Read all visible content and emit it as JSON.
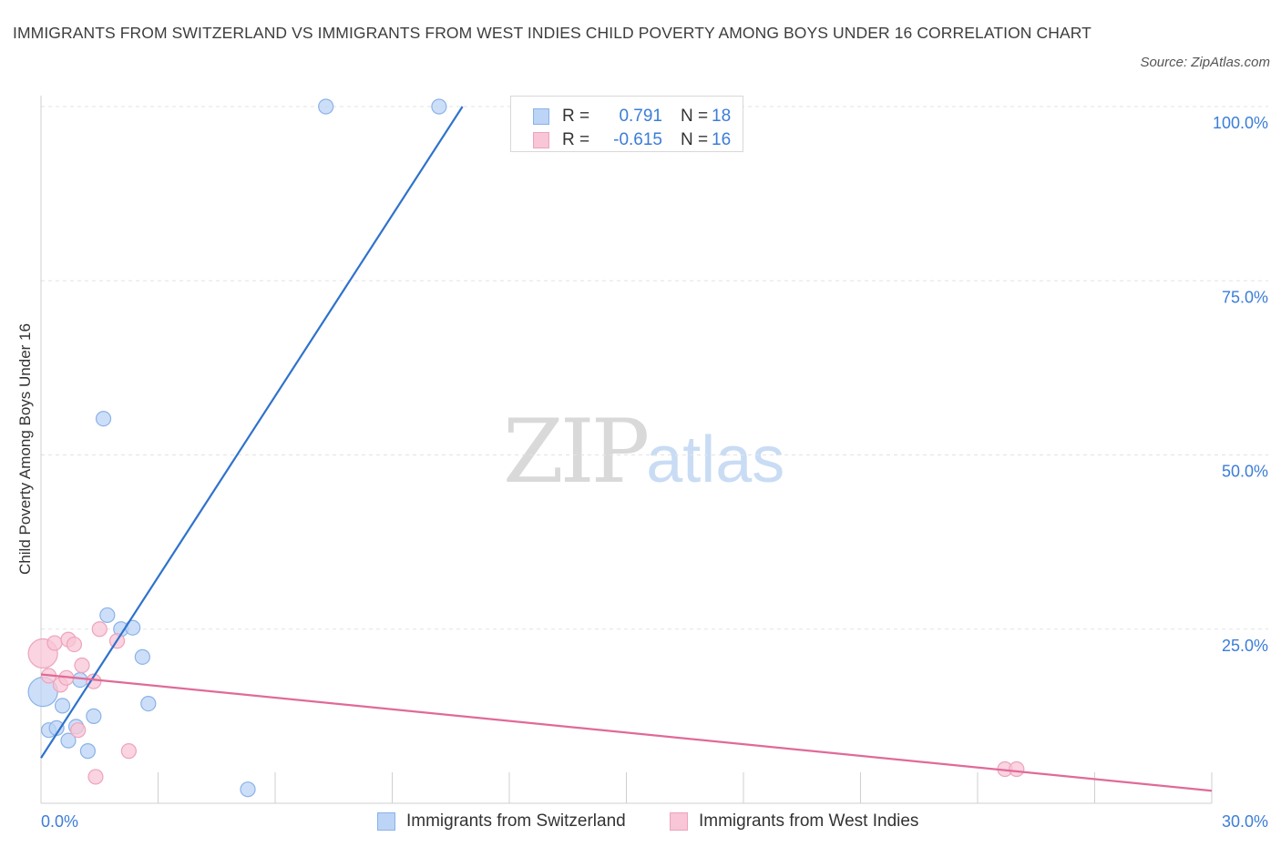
{
  "header": {
    "title": "IMMIGRANTS FROM SWITZERLAND VS IMMIGRANTS FROM WEST INDIES CHILD POVERTY AMONG BOYS UNDER 16 CORRELATION CHART",
    "source": "Source: ZipAtlas.com"
  },
  "watermark": {
    "zip": "ZIP",
    "atlas": "atlas"
  },
  "legend": {
    "rows": [
      {
        "r_label": "R =",
        "r_value": "0.791",
        "n_label": "N =",
        "n_value": "18"
      },
      {
        "r_label": "R =",
        "r_value": "-0.615",
        "n_label": "N =",
        "n_value": "16"
      }
    ]
  },
  "bottom_legend": {
    "series_a": "Immigrants from Switzerland",
    "series_b": "Immigrants from West Indies"
  },
  "colors": {
    "blue_fill": "#bcd4f5",
    "blue_stroke": "#8ab2e8",
    "blue_line": "#2f72cc",
    "pink_fill": "#f8c6d6",
    "pink_stroke": "#eea3bc",
    "pink_line": "#e06a97",
    "grid": "#e3e3e3",
    "tick_text": "#3b7dd8"
  },
  "chart_data": {
    "type": "scatter",
    "title": "IMMIGRANTS FROM SWITZERLAND VS IMMIGRANTS FROM WEST INDIES CHILD POVERTY AMONG BOYS UNDER 16 CORRELATION CHART",
    "xlabel": "",
    "ylabel": "Child Poverty Among Boys Under 16",
    "xlim": [
      0,
      30
    ],
    "ylim": [
      0,
      100
    ],
    "x_tick_labels": [
      "0.0%",
      "30.0%"
    ],
    "y_ticks": [
      25,
      50,
      75,
      100
    ],
    "y_tick_labels": [
      "25.0%",
      "50.0%",
      "75.0%",
      "100.0%"
    ],
    "series": [
      {
        "name": "Immigrants from Switzerland",
        "color": "blue",
        "points": [
          {
            "x": 0.05,
            "y": 16.0,
            "big": true
          },
          {
            "x": 0.2,
            "y": 10.5
          },
          {
            "x": 0.4,
            "y": 10.8
          },
          {
            "x": 0.55,
            "y": 14.0
          },
          {
            "x": 0.7,
            "y": 9.0
          },
          {
            "x": 0.9,
            "y": 11.0
          },
          {
            "x": 1.0,
            "y": 17.7
          },
          {
            "x": 1.2,
            "y": 7.5
          },
          {
            "x": 1.35,
            "y": 12.5
          },
          {
            "x": 1.6,
            "y": 55.2
          },
          {
            "x": 1.7,
            "y": 27.0
          },
          {
            "x": 2.05,
            "y": 25.0
          },
          {
            "x": 2.35,
            "y": 25.2
          },
          {
            "x": 2.6,
            "y": 21.0
          },
          {
            "x": 2.75,
            "y": 14.3
          },
          {
            "x": 5.3,
            "y": 2.0
          },
          {
            "x": 7.3,
            "y": 100.0
          },
          {
            "x": 10.2,
            "y": 100.0
          }
        ],
        "trend": {
          "x0": 0.0,
          "y0": 6.5,
          "x1": 10.8,
          "y1": 100.0
        }
      },
      {
        "name": "Immigrants from West Indies",
        "color": "pink",
        "points": [
          {
            "x": 0.05,
            "y": 21.5,
            "big": true
          },
          {
            "x": 0.2,
            "y": 18.3
          },
          {
            "x": 0.35,
            "y": 23.0
          },
          {
            "x": 0.5,
            "y": 17.0
          },
          {
            "x": 0.65,
            "y": 18.0
          },
          {
            "x": 0.7,
            "y": 23.5
          },
          {
            "x": 0.85,
            "y": 22.8
          },
          {
            "x": 0.95,
            "y": 10.5
          },
          {
            "x": 1.05,
            "y": 19.8
          },
          {
            "x": 1.35,
            "y": 17.5
          },
          {
            "x": 1.4,
            "y": 3.8
          },
          {
            "x": 1.5,
            "y": 25.0
          },
          {
            "x": 1.95,
            "y": 23.3
          },
          {
            "x": 2.25,
            "y": 7.5
          },
          {
            "x": 24.7,
            "y": 4.9
          },
          {
            "x": 25.0,
            "y": 4.9
          }
        ],
        "trend": {
          "x0": 0.0,
          "y0": 18.5,
          "x1": 30.0,
          "y1": 1.8
        }
      }
    ]
  }
}
